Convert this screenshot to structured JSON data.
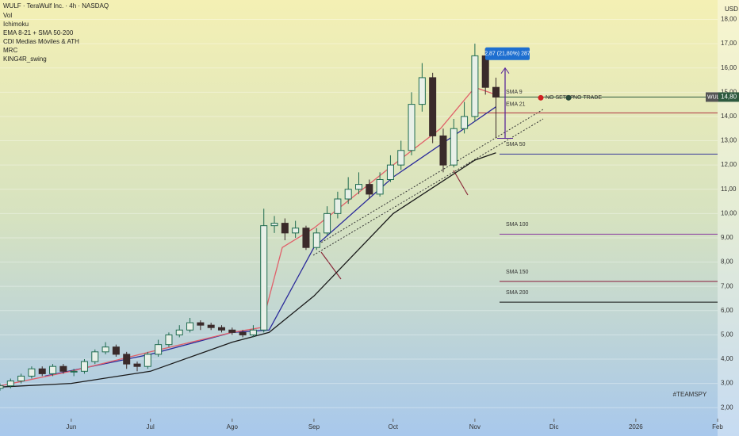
{
  "chart_data": {
    "type": "candlestick",
    "title": "WULF · TeraWulf Inc. · 4h · NASDAQ",
    "indicators": [
      "Vol",
      "Ichimoku",
      "EMA 8-21 + SMA 50-200",
      "CDI Medias Móviles & ATH",
      "MRC",
      "KING4R_swing"
    ],
    "currency": "USD",
    "xlim": [
      -27,
      245
    ],
    "xticks": [
      {
        "value": 0,
        "label": "Jun"
      },
      {
        "value": 30,
        "label": "Jul"
      },
      {
        "value": 61,
        "label": "Ago"
      },
      {
        "value": 92,
        "label": "Sep"
      },
      {
        "value": 122,
        "label": "Oct"
      },
      {
        "value": 153,
        "label": "Nov"
      },
      {
        "value": 183,
        "label": "Dic"
      },
      {
        "value": 214,
        "label": "2026"
      },
      {
        "value": 245,
        "label": "Feb"
      }
    ],
    "ylim": [
      1.55,
      18.8
    ],
    "yticks": [
      {
        "value": 2,
        "label": "2,00"
      },
      {
        "value": 3,
        "label": "3,00"
      },
      {
        "value": 4,
        "label": "4,00"
      },
      {
        "value": 5,
        "label": "5,00"
      },
      {
        "value": 6,
        "label": "6,00"
      },
      {
        "value": 7,
        "label": "7,00"
      },
      {
        "value": 8,
        "label": "8,00"
      },
      {
        "value": 9,
        "label": "9,00"
      },
      {
        "value": 10,
        "label": "10,00"
      },
      {
        "value": 11,
        "label": "11,00"
      },
      {
        "value": 12,
        "label": "12,00"
      },
      {
        "value": 13,
        "label": "13,00"
      },
      {
        "value": 14,
        "label": "14,00"
      },
      {
        "value": 15,
        "label": "15,00"
      },
      {
        "value": 16,
        "label": "16,00"
      },
      {
        "value": 17,
        "label": "17,00"
      },
      {
        "value": 18,
        "label": "18,00"
      }
    ],
    "up_color": "#1f6b4f",
    "down_color": "#3a2a2a",
    "x": [
      -27,
      -23,
      -19,
      -15,
      -11,
      -7,
      -3,
      1,
      5,
      9,
      13,
      17,
      21,
      25,
      29,
      33,
      37,
      41,
      45,
      49,
      53,
      57,
      61,
      65,
      69,
      73,
      77,
      81,
      85,
      89,
      93,
      97,
      101,
      105,
      109,
      113,
      117,
      121,
      125,
      129,
      133,
      137,
      141,
      145,
      149,
      153,
      157,
      161
    ],
    "open": [
      2.8,
      2.9,
      3.1,
      3.3,
      3.6,
      3.4,
      3.7,
      3.5,
      3.5,
      3.9,
      4.3,
      4.5,
      4.2,
      3.8,
      3.7,
      4.2,
      4.6,
      5.0,
      5.2,
      5.5,
      5.4,
      5.3,
      5.2,
      5.1,
      5.0,
      5.2,
      9.5,
      9.6,
      9.2,
      9.4,
      8.6,
      9.2,
      10.0,
      10.6,
      11.0,
      11.2,
      10.8,
      11.4,
      12.0,
      12.6,
      14.5,
      15.6,
      13.2,
      12.0,
      13.5,
      14.0,
      16.5,
      15.2
    ],
    "high": [
      3.0,
      3.2,
      3.4,
      3.7,
      3.7,
      3.8,
      3.8,
      3.6,
      4.0,
      4.4,
      4.7,
      4.6,
      4.3,
      3.9,
      4.3,
      4.8,
      5.1,
      5.4,
      5.7,
      5.6,
      5.5,
      5.4,
      5.3,
      5.2,
      5.4,
      10.2,
      9.9,
      9.8,
      9.7,
      9.5,
      9.4,
      10.3,
      10.9,
      11.5,
      11.7,
      11.4,
      11.7,
      12.4,
      13.0,
      15.0,
      16.2,
      15.8,
      13.5,
      13.9,
      14.6,
      17.0,
      16.8,
      15.6
    ],
    "low": [
      2.7,
      2.8,
      3.0,
      3.2,
      3.3,
      3.3,
      3.4,
      3.3,
      3.4,
      3.8,
      4.2,
      4.1,
      3.6,
      3.5,
      3.6,
      4.1,
      4.5,
      4.9,
      5.1,
      5.2,
      5.2,
      5.1,
      5.0,
      4.9,
      4.9,
      5.1,
      9.2,
      8.9,
      9.0,
      8.5,
      8.5,
      9.1,
      9.8,
      10.4,
      10.8,
      10.6,
      10.7,
      11.3,
      11.8,
      12.4,
      14.2,
      12.9,
      11.7,
      11.9,
      13.3,
      13.8,
      14.9,
      13.1
    ],
    "close": [
      2.9,
      3.1,
      3.3,
      3.6,
      3.4,
      3.7,
      3.5,
      3.5,
      3.9,
      4.3,
      4.5,
      4.2,
      3.8,
      3.7,
      4.2,
      4.6,
      5.0,
      5.2,
      5.5,
      5.4,
      5.3,
      5.2,
      5.1,
      5.0,
      5.2,
      9.5,
      9.6,
      9.2,
      9.4,
      8.6,
      9.2,
      10.0,
      10.6,
      11.0,
      11.2,
      10.8,
      11.4,
      12.0,
      12.6,
      14.5,
      15.6,
      13.2,
      12.0,
      13.5,
      14.0,
      16.5,
      15.2,
      14.8
    ],
    "averages": [
      {
        "color": "#1a1a1a",
        "x": [
          -27,
          0,
          30,
          61,
          75,
          92,
          122,
          153,
          161
        ],
        "values": [
          2.85,
          3.0,
          3.5,
          4.7,
          5.1,
          6.6,
          10.0,
          12.2,
          12.5
        ]
      },
      {
        "color": "#2a2a9a",
        "x": [
          -10,
          30,
          61,
          75,
          92,
          122,
          153,
          161
        ],
        "values": [
          3.3,
          4.2,
          5.1,
          5.2,
          8.6,
          11.5,
          13.8,
          14.4
        ]
      },
      {
        "color": "#e0606a",
        "x": [
          -27,
          0,
          30,
          61,
          72,
          80,
          92,
          122,
          140,
          153,
          161
        ],
        "values": [
          2.9,
          3.5,
          4.3,
          5.1,
          5.3,
          8.6,
          9.4,
          12.0,
          13.5,
          15.2,
          14.9
        ]
      }
    ],
    "levels": [
      {
        "label": "SMA 9",
        "value": 15.0,
        "color": "#2e6b4f",
        "line": false
      },
      {
        "label": "EMA 21",
        "value": 14.5,
        "color": "#c0505a",
        "line": false
      },
      {
        "label": "SMA 50",
        "value": 12.45,
        "color": "#3a3a9a",
        "line": true
      },
      {
        "label": "SMA 100",
        "value": 9.15,
        "color": "#8a3aa0",
        "line": true
      },
      {
        "label": "SMA 150",
        "value": 7.2,
        "color": "#8a1a3a",
        "line": true
      },
      {
        "label": "SMA 200",
        "value": 6.35,
        "color": "#111111",
        "line": true
      }
    ],
    "resistance": 14.15,
    "last_price": {
      "symbol": "WULF",
      "value": 14.8,
      "label": "14,80"
    },
    "measure": {
      "label": "2,87 (21,80%) 287",
      "from": 13.1,
      "to": 16.0
    },
    "signals": [
      "NO SETUP",
      "NO TRADE"
    ],
    "watermark": "#TEAMSPY"
  }
}
